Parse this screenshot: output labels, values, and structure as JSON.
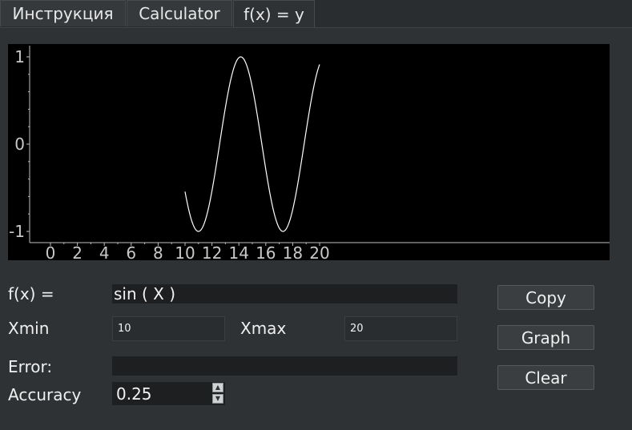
{
  "tabs": [
    {
      "label": "Инструкция"
    },
    {
      "label": "Calculator"
    },
    {
      "label": "f(x) = y"
    }
  ],
  "plot": {
    "x_ticks": [
      "0",
      "2",
      "4",
      "6",
      "8",
      "10",
      "12",
      "14",
      "16",
      "18",
      "20"
    ],
    "y_ticks": [
      "1",
      "0",
      "-1"
    ],
    "function": "sin(x)",
    "x_range": [
      10,
      20
    ],
    "y_range": [
      -1,
      1
    ]
  },
  "form": {
    "fx_label": "f(x) =",
    "fx_value": "sin (  X  )",
    "xmin_label": "Xmin",
    "xmin_value": "10",
    "xmax_label": "Xmax",
    "xmax_value": "20",
    "error_label": "Error:",
    "error_value": "",
    "accuracy_label": "Accuracy",
    "accuracy_value": "0.25"
  },
  "buttons": {
    "copy": "Copy",
    "graph": "Graph",
    "clear": "Clear"
  },
  "colors": {
    "curve": "#ffffff",
    "plot_bg": "#000000",
    "axis": "#bfbfbf"
  }
}
